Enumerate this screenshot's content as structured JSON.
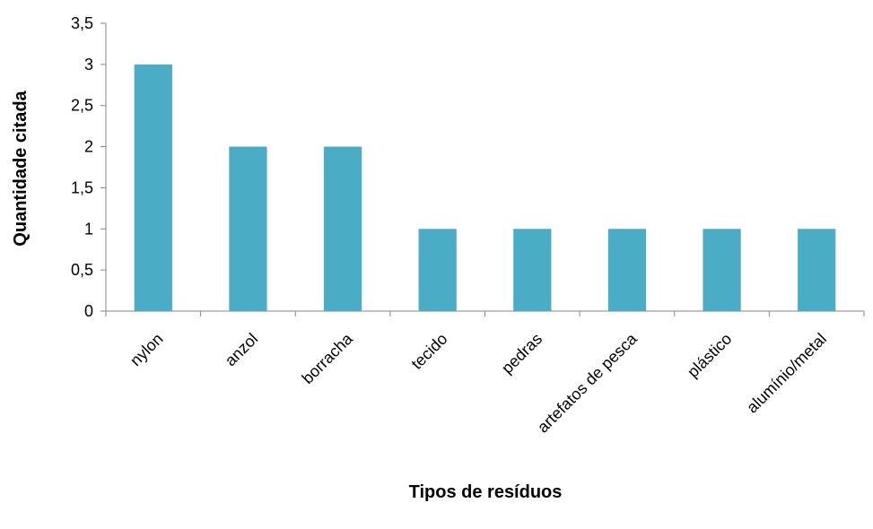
{
  "chart_data": {
    "type": "bar",
    "categories": [
      "nylon",
      "anzol",
      "borracha",
      "tecido",
      "pedras",
      "artefatos de pesca",
      "plástico",
      "alumínio/metal"
    ],
    "values": [
      3,
      2,
      2,
      1,
      1,
      1,
      1,
      1
    ],
    "xlabel": "Tipos de resíduos",
    "ylabel": "Quantidade citada",
    "ylim": [
      0,
      3.5
    ],
    "yticks": [
      "0",
      "0,5",
      "1",
      "1,5",
      "2",
      "2,5",
      "3",
      "3,5"
    ],
    "grid": false,
    "legend": "none",
    "bar_color": "#4bacc6",
    "axis_color": "#868686"
  }
}
